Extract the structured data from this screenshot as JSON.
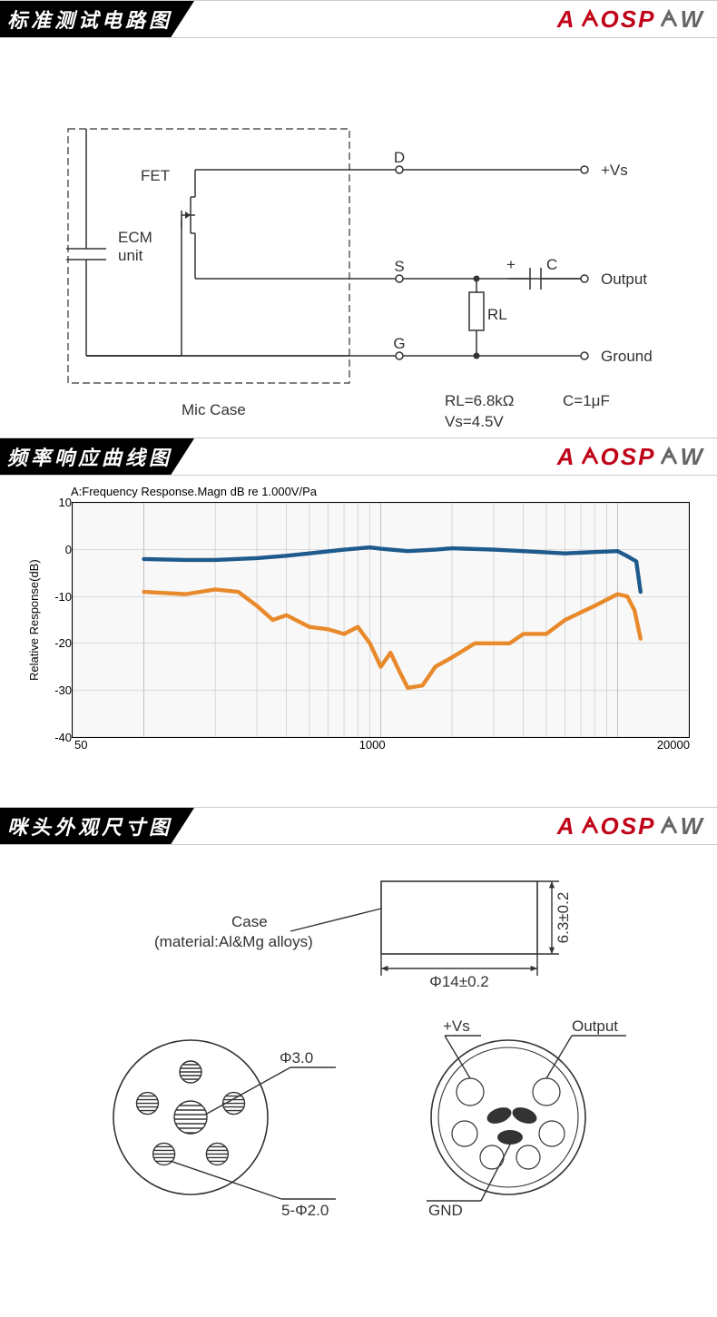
{
  "brand": {
    "part1": "A",
    "part2": "OSP",
    "part3": "O",
    "part4": "W"
  },
  "sections": {
    "circuit": {
      "title": "标准测试电路图"
    },
    "response": {
      "title": "频率响应曲线图"
    },
    "dimensions": {
      "title": "咪头外观尺寸图"
    }
  },
  "circuit": {
    "labels": {
      "fet": "FET",
      "ecm": "ECM",
      "unit": "unit",
      "d": "D",
      "s": "S",
      "g": "G",
      "vs_plus": "+Vs",
      "output": "Output",
      "ground": "Ground",
      "rl": "RL",
      "c": "C",
      "plus": "+",
      "mic_case": "Mic Case",
      "params_rl": "RL=6.8kΩ",
      "params_c": "C=1μF",
      "params_vs": "Vs=4.5V"
    },
    "stroke": "#333333",
    "text_color": "#333333",
    "text_size": 17
  },
  "chart": {
    "title": "A:Frequency Response.Magn dB re 1.000V/Pa",
    "ylabel": "Relative Response(dB)",
    "ylim": [
      -40,
      10
    ],
    "ytick_step": 10,
    "yticks": [
      "10",
      "0",
      "-10",
      "-20",
      "-30",
      "-40"
    ],
    "xlim": [
      50,
      20000
    ],
    "xtick_labels": [
      "50",
      "1000",
      "20000"
    ],
    "grid_color": "#bdbdbd",
    "background": "#ffffff",
    "series": [
      {
        "name": "front",
        "color": "#1f5a8c",
        "line_width": 2.2,
        "points": [
          [
            100,
            -2
          ],
          [
            150,
            -2.2
          ],
          [
            200,
            -2.2
          ],
          [
            300,
            -1.8
          ],
          [
            400,
            -1.3
          ],
          [
            500,
            -0.8
          ],
          [
            700,
            0
          ],
          [
            900,
            0.5
          ],
          [
            1000,
            0.2
          ],
          [
            1300,
            -0.3
          ],
          [
            1700,
            0
          ],
          [
            2000,
            0.3
          ],
          [
            3000,
            0
          ],
          [
            4000,
            -0.3
          ],
          [
            6000,
            -0.8
          ],
          [
            8000,
            -0.5
          ],
          [
            10000,
            -0.3
          ],
          [
            11000,
            -1.4
          ],
          [
            12000,
            -2.5
          ],
          [
            12500,
            -9
          ]
        ]
      },
      {
        "name": "rear",
        "color": "#e88a2b",
        "line_width": 2.2,
        "points": [
          [
            100,
            -9
          ],
          [
            150,
            -9.5
          ],
          [
            200,
            -8.5
          ],
          [
            250,
            -9
          ],
          [
            300,
            -12
          ],
          [
            350,
            -15
          ],
          [
            400,
            -14
          ],
          [
            500,
            -16.5
          ],
          [
            600,
            -17
          ],
          [
            700,
            -18
          ],
          [
            800,
            -16.5
          ],
          [
            900,
            -20
          ],
          [
            1000,
            -25
          ],
          [
            1100,
            -22
          ],
          [
            1200,
            -26
          ],
          [
            1300,
            -29.5
          ],
          [
            1500,
            -29
          ],
          [
            1700,
            -25
          ],
          [
            2000,
            -23
          ],
          [
            2500,
            -20
          ],
          [
            3000,
            -20
          ],
          [
            3500,
            -20
          ],
          [
            4000,
            -18
          ],
          [
            5000,
            -18
          ],
          [
            6000,
            -15
          ],
          [
            8000,
            -12
          ],
          [
            10000,
            -9.5
          ],
          [
            11000,
            -10
          ],
          [
            11800,
            -13
          ],
          [
            12500,
            -19
          ]
        ]
      }
    ]
  },
  "dimensions": {
    "case_label": "Case",
    "material": "(material:Al&Mg alloys)",
    "width_dim": "Φ14±0.2",
    "height_dim": "6.3±0.2",
    "front_hole_dia": "Φ3.0",
    "front_holes": "5-Φ2.0",
    "rear_vs": "+Vs",
    "rear_out": "Output",
    "rear_gnd": "GND",
    "stroke": "#333333",
    "text_size": 17
  }
}
